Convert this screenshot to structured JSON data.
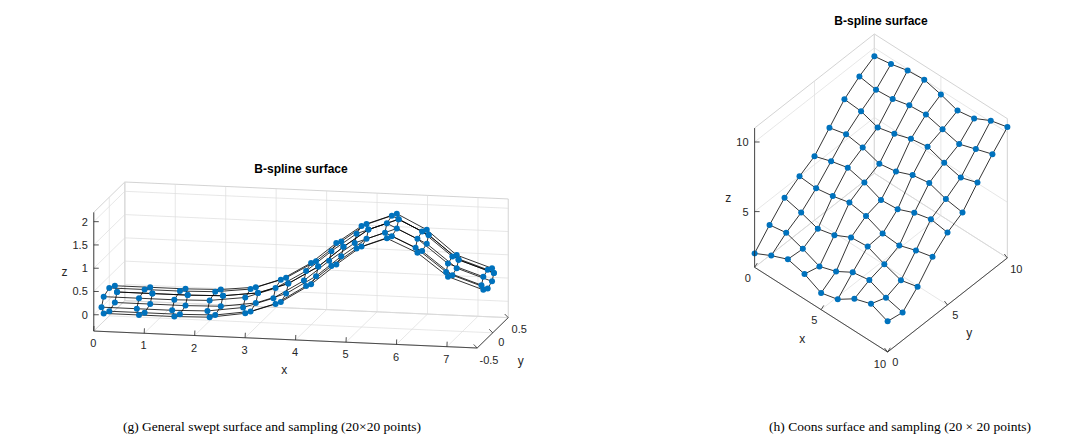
{
  "chart_data": [
    {
      "type": "surface",
      "title": "B-spline surface",
      "caption": "(g) General swept surface and sampling (20×20 points)",
      "x_label": "x",
      "y_label": "y",
      "z_label": "z",
      "xlim": [
        0,
        7.6
      ],
      "ylim": [
        -0.5,
        0.5
      ],
      "zlim": [
        -0.35,
        2.2
      ],
      "xticks": [
        0,
        1,
        2,
        3,
        4,
        5,
        6,
        7
      ],
      "yticks": [
        -0.5,
        0,
        0.5
      ],
      "zticks": [
        0,
        0.5,
        1,
        1.5,
        2
      ],
      "grid": true,
      "color": "#0072BD",
      "marker": "circle",
      "x": [
        [
          0,
          0,
          0,
          0,
          0,
          0,
          0,
          0,
          0
        ],
        [
          0.7,
          0.7,
          0.7,
          0.7,
          0.7,
          0.7,
          0.7,
          0.7,
          0.7
        ],
        [
          1.4,
          1.4,
          1.4,
          1.4,
          1.4,
          1.4,
          1.4,
          1.4,
          1.4
        ],
        [
          2.1,
          2.1,
          2.1,
          2.1,
          2.1,
          2.1,
          2.1,
          2.1,
          2.1
        ],
        [
          2.8,
          2.8,
          2.8,
          2.8,
          2.8,
          2.8,
          2.8,
          2.8,
          2.8
        ],
        [
          3.4,
          3.4,
          3.4,
          3.4,
          3.4,
          3.4,
          3.4,
          3.4,
          3.4
        ],
        [
          4,
          4,
          4,
          4,
          4,
          4,
          4,
          4,
          4
        ],
        [
          4.5,
          4.5,
          4.5,
          4.5,
          4.5,
          4.5,
          4.5,
          4.5,
          4.5
        ],
        [
          5,
          5,
          5,
          5,
          5,
          5,
          5,
          5,
          5
        ],
        [
          5.6,
          5.6,
          5.6,
          5.6,
          5.6,
          5.6,
          5.6,
          5.6,
          5.6
        ],
        [
          6.2,
          6.2,
          6.2,
          6.2,
          6.2,
          6.2,
          6.2,
          6.2,
          6.2
        ],
        [
          6.8,
          6.8,
          6.8,
          6.8,
          6.8,
          6.8,
          6.8,
          6.8,
          6.8
        ],
        [
          7.5,
          7.5,
          7.5,
          7.5,
          7.5,
          7.5,
          7.5,
          7.5,
          7.5
        ]
      ],
      "y": [
        [
          0.25,
          0.18,
          0,
          -0.18,
          -0.25,
          -0.18,
          0,
          0.18,
          0.25
        ],
        [
          0.25,
          0.18,
          0,
          -0.18,
          -0.25,
          -0.18,
          0,
          0.18,
          0.25
        ],
        [
          0.25,
          0.18,
          0,
          -0.18,
          -0.25,
          -0.18,
          0,
          0.18,
          0.25
        ],
        [
          0.25,
          0.18,
          0,
          -0.18,
          -0.25,
          -0.18,
          0,
          0.18,
          0.25
        ],
        [
          0.24,
          0.17,
          0,
          -0.17,
          -0.24,
          -0.17,
          0,
          0.17,
          0.24
        ],
        [
          0.24,
          0.17,
          0,
          -0.17,
          -0.24,
          -0.17,
          0,
          0.17,
          0.24
        ],
        [
          0.23,
          0.16,
          0,
          -0.16,
          -0.23,
          -0.16,
          0,
          0.16,
          0.23
        ],
        [
          0.23,
          0.16,
          0,
          -0.16,
          -0.23,
          -0.16,
          0,
          0.16,
          0.23
        ],
        [
          0.22,
          0.16,
          0,
          -0.16,
          -0.22,
          -0.16,
          0,
          0.16,
          0.22
        ],
        [
          0.22,
          0.16,
          0,
          -0.16,
          -0.22,
          -0.16,
          0,
          0.16,
          0.22
        ],
        [
          0.21,
          0.15,
          0,
          -0.15,
          -0.21,
          -0.15,
          0,
          0.15,
          0.21
        ],
        [
          0.2,
          0.14,
          0,
          -0.14,
          -0.2,
          -0.14,
          0,
          0.14,
          0.2
        ],
        [
          0.2,
          0.14,
          0,
          -0.14,
          -0.2,
          -0.14,
          0,
          0.14,
          0.2
        ]
      ],
      "z": [
        [
          0,
          0.18,
          0.25,
          0.18,
          0,
          -0.18,
          -0.25,
          -0.18,
          0
        ],
        [
          0,
          0.18,
          0.25,
          0.18,
          0,
          -0.18,
          -0.25,
          -0.18,
          0
        ],
        [
          0,
          0.18,
          0.25,
          0.18,
          0,
          -0.18,
          -0.25,
          -0.18,
          0
        ],
        [
          0.02,
          0.2,
          0.27,
          0.2,
          0.02,
          -0.16,
          -0.23,
          -0.16,
          0.02
        ],
        [
          0.12,
          0.29,
          0.36,
          0.29,
          0.12,
          -0.05,
          -0.12,
          -0.05,
          0.12
        ],
        [
          0.35,
          0.52,
          0.59,
          0.52,
          0.35,
          0.18,
          0.11,
          0.18,
          0.35
        ],
        [
          0.75,
          0.91,
          0.98,
          0.91,
          0.75,
          0.59,
          0.52,
          0.59,
          0.75
        ],
        [
          1.2,
          1.36,
          1.43,
          1.36,
          1.2,
          1.04,
          0.97,
          1.04,
          1.2
        ],
        [
          1.6,
          1.76,
          1.82,
          1.76,
          1.6,
          1.44,
          1.38,
          1.44,
          1.6
        ],
        [
          1.85,
          2.01,
          2.07,
          2.01,
          1.85,
          1.69,
          1.63,
          1.69,
          1.85
        ],
        [
          1.55,
          1.7,
          1.76,
          1.7,
          1.55,
          1.4,
          1.34,
          1.4,
          1.55
        ],
        [
          1.05,
          1.19,
          1.25,
          1.19,
          1.05,
          0.91,
          0.85,
          0.91,
          1.05
        ],
        [
          0.8,
          0.94,
          1,
          0.94,
          0.8,
          0.66,
          0.6,
          0.66,
          0.8
        ]
      ]
    },
    {
      "type": "surface",
      "title": "B-spline surface",
      "caption": "(h) Coons surface and sampling (20 × 20 points)",
      "x_label": "x",
      "y_label": "y",
      "z_label": "z",
      "xlim": [
        0,
        10
      ],
      "ylim": [
        0,
        10
      ],
      "zlim": [
        1,
        11
      ],
      "xticks": [
        0,
        5,
        10
      ],
      "yticks": [
        0,
        5,
        10
      ],
      "zticks": [
        5,
        10
      ],
      "grid": true,
      "color": "#0072BD",
      "marker": "circle",
      "x": [
        0,
        1.25,
        2.5,
        3.75,
        5,
        6.25,
        7.5,
        8.75,
        10
      ],
      "y": [
        0,
        1.25,
        2.5,
        3.75,
        5,
        6.25,
        7.5,
        8.75,
        10
      ],
      "z": [
        [
          2.0,
          3.2,
          4.3,
          5.0,
          5.6,
          6.8,
          8.0,
          8.8,
          9.4
        ],
        [
          2.6,
          3.4,
          4.0,
          4.9,
          6.0,
          7.1,
          7.9,
          8.6,
          9.6
        ],
        [
          3.1,
          3.0,
          3.6,
          5.1,
          6.3,
          6.9,
          7.5,
          8.7,
          9.9
        ],
        [
          2.8,
          2.5,
          3.9,
          5.4,
          6.0,
          6.5,
          7.8,
          9.0,
          10.0
        ],
        [
          2.2,
          2.9,
          4.5,
          5.2,
          5.5,
          6.7,
          8.2,
          9.1,
          9.7
        ],
        [
          2.5,
          3.6,
          4.6,
          4.7,
          5.6,
          7.2,
          8.4,
          8.8,
          9.3
        ],
        [
          3.3,
          3.8,
          4.1,
          4.6,
          6.1,
          7.4,
          8.0,
          8.5,
          9.5
        ],
        [
          3.7,
          3.3,
          3.7,
          5.0,
          6.4,
          7.0,
          7.7,
          8.9,
          10.1
        ],
        [
          3.2,
          3.0,
          4.0,
          5.3,
          6.2,
          6.8,
          8.1,
          9.3,
          10.4
        ]
      ]
    }
  ]
}
